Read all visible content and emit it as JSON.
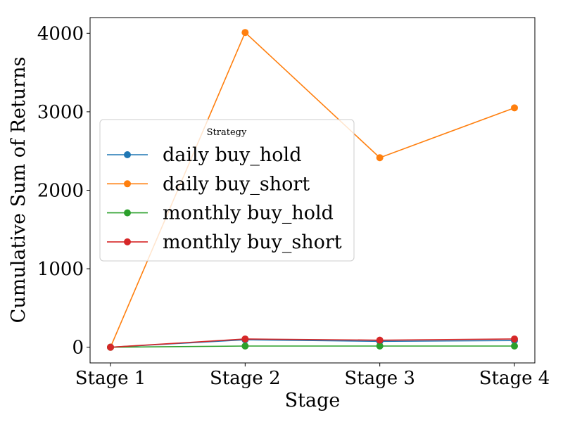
{
  "chart_data": {
    "type": "line",
    "title": "",
    "xlabel": "Stage",
    "ylabel": "Cumulative Sum of Returns",
    "categories": [
      "Stage 1",
      "Stage 2",
      "Stage 3",
      "Stage 4"
    ],
    "ylim": [
      -200,
      4200
    ],
    "yticks": [
      0,
      1000,
      2000,
      3000,
      4000
    ],
    "grid": false,
    "legend": {
      "title": "Strategy",
      "placement": "center-left"
    },
    "series": [
      {
        "name": "daily buy_hold",
        "color": "#1f77b4",
        "values": [
          0,
          95,
          75,
          85
        ]
      },
      {
        "name": "daily buy_short",
        "color": "#ff7f0e",
        "values": [
          0,
          4010,
          2415,
          3050
        ]
      },
      {
        "name": "monthly buy_hold",
        "color": "#2ca02c",
        "values": [
          0,
          15,
          15,
          15
        ]
      },
      {
        "name": "monthly buy_short",
        "color": "#d62728",
        "values": [
          0,
          105,
          90,
          105
        ]
      }
    ]
  }
}
